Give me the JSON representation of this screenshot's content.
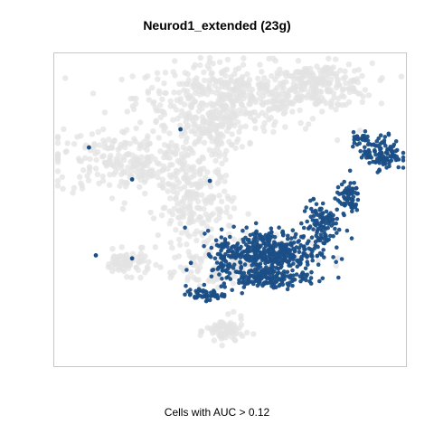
{
  "chart_data": {
    "type": "scatter",
    "title": "Neurod1_extended (23g)",
    "xlabel": "Cells with AUC > 0.12",
    "ylabel": "",
    "axes_shown": false,
    "grid": false,
    "legend": "none",
    "colors": {
      "background_cells": "#e3e3e3",
      "active_cells": "#1a4e86"
    },
    "series": [
      {
        "role": "all cells (grey)",
        "regions": [
          {
            "cx": 0.0,
            "cy": 0.74,
            "rx": 0.5,
            "ry": 0.2,
            "n": 420
          },
          {
            "cx": 0.52,
            "cy": 0.82,
            "rx": 0.27,
            "ry": 0.13,
            "n": 200
          },
          {
            "cx": -0.58,
            "cy": 0.32,
            "rx": 0.42,
            "ry": 0.2,
            "n": 270
          },
          {
            "cx": -0.1,
            "cy": 0.52,
            "rx": 0.18,
            "ry": 0.15,
            "n": 110
          },
          {
            "cx": -0.2,
            "cy": 0.02,
            "rx": 0.2,
            "ry": 0.28,
            "n": 200
          },
          {
            "cx": -0.6,
            "cy": -0.35,
            "rx": 0.13,
            "ry": 0.07,
            "n": 70
          },
          {
            "cx": -0.03,
            "cy": -0.8,
            "rx": 0.1,
            "ry": 0.08,
            "n": 80
          },
          {
            "cx": -0.08,
            "cy": -0.4,
            "rx": 0.2,
            "ry": 0.09,
            "n": 60
          },
          {
            "cx": 0.15,
            "cy": -0.3,
            "rx": 0.3,
            "ry": 0.12,
            "n": 120
          }
        ]
      },
      {
        "role": "cells with AUC > 0.12 (blue)",
        "regions": [
          {
            "cx": 0.22,
            "cy": -0.28,
            "rx": 0.26,
            "ry": 0.14,
            "n": 400
          },
          {
            "cx": 0.2,
            "cy": -0.45,
            "rx": 0.23,
            "ry": 0.06,
            "n": 150
          },
          {
            "cx": -0.15,
            "cy": -0.56,
            "rx": 0.1,
            "ry": 0.03,
            "n": 50
          },
          {
            "cx": 0.52,
            "cy": -0.1,
            "rx": 0.1,
            "ry": 0.16,
            "n": 110
          },
          {
            "cx": 0.68,
            "cy": 0.08,
            "rx": 0.06,
            "ry": 0.09,
            "n": 70
          },
          {
            "cx": 0.88,
            "cy": 0.37,
            "rx": 0.1,
            "ry": 0.1,
            "n": 120
          },
          {
            "cx": 0.75,
            "cy": 0.47,
            "rx": 0.05,
            "ry": 0.05,
            "n": 25
          },
          {
            "cx": -0.03,
            "cy": -0.3,
            "rx": 0.08,
            "ry": 0.1,
            "n": 40
          }
        ],
        "isolated_points": [
          [
            -0.29,
            0.53
          ],
          [
            -0.82,
            0.41
          ],
          [
            -0.57,
            0.2
          ],
          [
            -0.12,
            0.19
          ],
          [
            -0.78,
            -0.3
          ],
          [
            -0.57,
            -0.32
          ],
          [
            -0.23,
            -0.35
          ],
          [
            0.48,
            0.07
          ]
        ]
      }
    ],
    "xlim": [
      -1.0,
      1.0
    ],
    "ylim": [
      -1.0,
      1.0
    ]
  }
}
